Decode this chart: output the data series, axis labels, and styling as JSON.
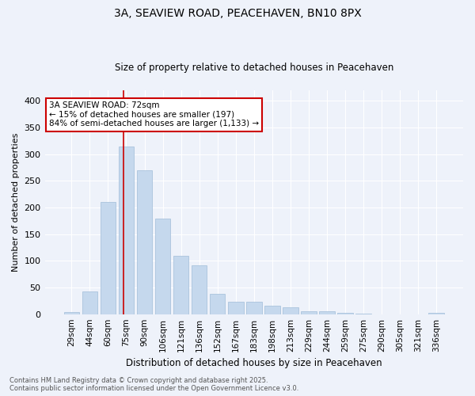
{
  "title_line1": "3A, SEAVIEW ROAD, PEACEHAVEN, BN10 8PX",
  "title_line2": "Size of property relative to detached houses in Peacehaven",
  "xlabel": "Distribution of detached houses by size in Peacehaven",
  "ylabel": "Number of detached properties",
  "categories": [
    "29sqm",
    "44sqm",
    "60sqm",
    "75sqm",
    "90sqm",
    "106sqm",
    "121sqm",
    "136sqm",
    "152sqm",
    "167sqm",
    "183sqm",
    "198sqm",
    "213sqm",
    "229sqm",
    "244sqm",
    "259sqm",
    "275sqm",
    "290sqm",
    "305sqm",
    "321sqm",
    "336sqm"
  ],
  "values": [
    4,
    42,
    210,
    315,
    270,
    179,
    109,
    91,
    38,
    23,
    23,
    16,
    13,
    5,
    5,
    2,
    1,
    0,
    0,
    0,
    3
  ],
  "bar_color": "#c5d8ed",
  "bar_edge_color": "#a0bcd8",
  "vline_color": "#cc0000",
  "vline_x": 2.85,
  "annotation_text": "3A SEAVIEW ROAD: 72sqm\n← 15% of detached houses are smaller (197)\n84% of semi-detached houses are larger (1,133) →",
  "annotation_box_color": "#ffffff",
  "annotation_box_edge": "#cc0000",
  "background_color": "#eef2fa",
  "grid_color": "#ffffff",
  "ylim": [
    0,
    420
  ],
  "yticks": [
    0,
    50,
    100,
    150,
    200,
    250,
    300,
    350,
    400
  ],
  "footer": "Contains HM Land Registry data © Crown copyright and database right 2025.\nContains public sector information licensed under the Open Government Licence v3.0."
}
